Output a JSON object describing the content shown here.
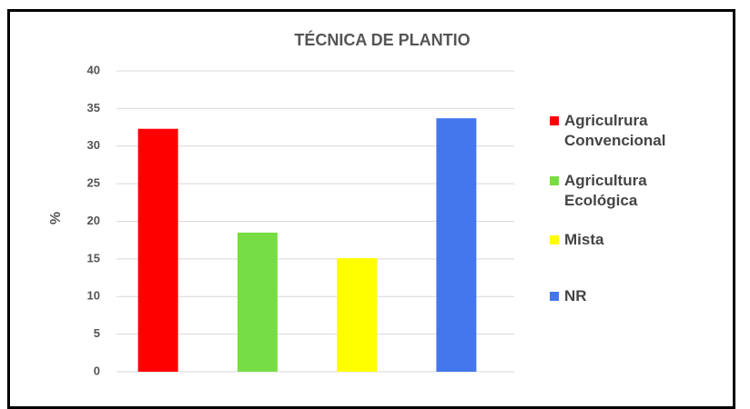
{
  "chart_data": {
    "type": "bar",
    "title": "TÉCNICA DE PLANTIO",
    "y_label": "%",
    "categories": [
      "Agriculrura Convencional",
      "Agricultura Ecológica",
      "Mista",
      "NR"
    ],
    "values": [
      32.3,
      18.5,
      15.1,
      33.7
    ],
    "colors": [
      "#ff0000",
      "#77dd44",
      "#ffff00",
      "#4477ee"
    ],
    "ylim": [
      0,
      40
    ],
    "yticks": [
      0,
      5,
      10,
      15,
      20,
      25,
      30,
      35,
      40
    ],
    "grid": true,
    "legend": "right"
  }
}
